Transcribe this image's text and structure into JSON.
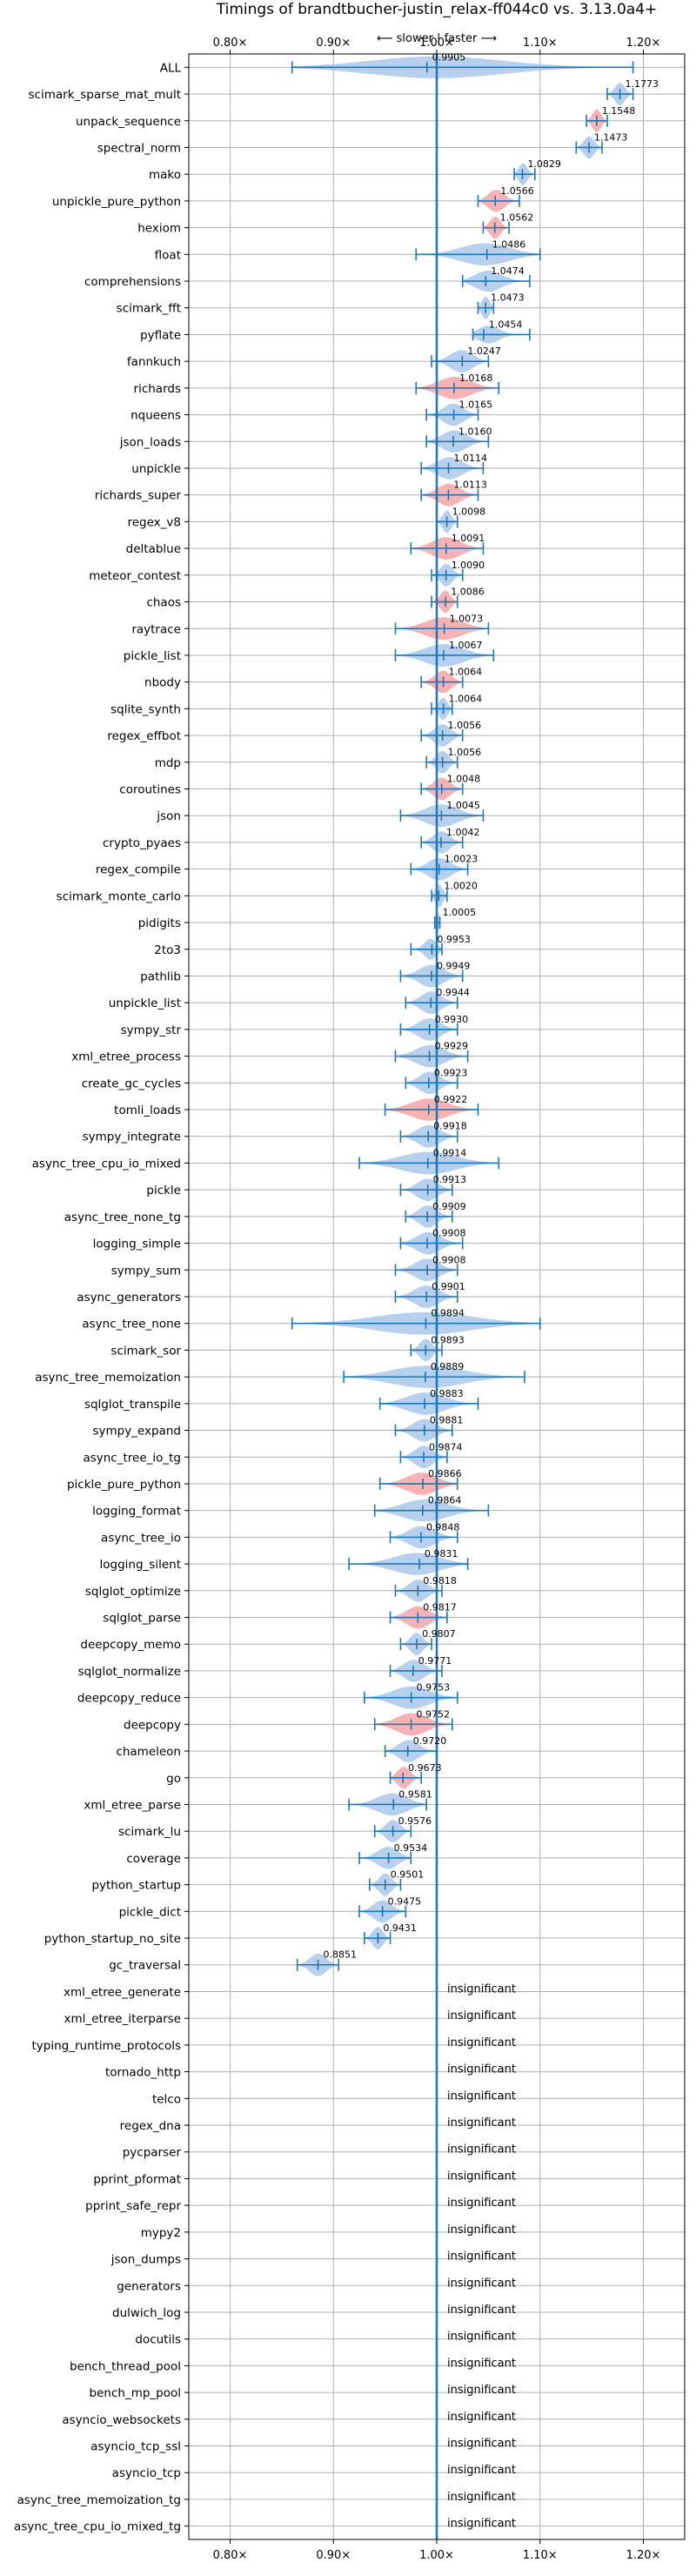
{
  "chart_data": {
    "type": "violin",
    "title": "Timings of brandtbucher-justin_relax-ff044c0 vs. 3.13.0a4+",
    "direction_label": "⟵ slower | faster ⟶",
    "xlabel": "",
    "ylabel": "",
    "xlim": [
      0.76,
      1.24
    ],
    "x_ticks": [
      0.8,
      0.9,
      1.0,
      1.1,
      1.2
    ],
    "x_tick_labels": [
      "0.80×",
      "0.90×",
      "1.00×",
      "1.10×",
      "1.20×"
    ],
    "reference_line": 1.0,
    "grid": true,
    "colors": {
      "faster": "#a9c8ea",
      "slower": "#f4a5a8",
      "errorbar": "#1f77b4",
      "reference": "#1f77b4",
      "grid": "#b0b0b0"
    },
    "insignificant_label": "insignificant",
    "benchmarks": [
      {
        "name": "ALL",
        "value": 0.9905,
        "low": 0.86,
        "high": 1.19,
        "significant": true,
        "color": "faster"
      },
      {
        "name": "scimark_sparse_mat_mult",
        "value": 1.1773,
        "low": 1.165,
        "high": 1.19,
        "significant": true,
        "color": "faster"
      },
      {
        "name": "unpack_sequence",
        "value": 1.1548,
        "low": 1.145,
        "high": 1.165,
        "significant": true,
        "color": "slower"
      },
      {
        "name": "spectral_norm",
        "value": 1.1473,
        "low": 1.135,
        "high": 1.16,
        "significant": true,
        "color": "faster"
      },
      {
        "name": "mako",
        "value": 1.0829,
        "low": 1.075,
        "high": 1.095,
        "significant": true,
        "color": "faster"
      },
      {
        "name": "unpickle_pure_python",
        "value": 1.0566,
        "low": 1.04,
        "high": 1.08,
        "significant": true,
        "color": "slower"
      },
      {
        "name": "hexiom",
        "value": 1.0562,
        "low": 1.045,
        "high": 1.07,
        "significant": true,
        "color": "slower"
      },
      {
        "name": "float",
        "value": 1.0486,
        "low": 0.98,
        "high": 1.1,
        "significant": true,
        "color": "faster"
      },
      {
        "name": "comprehensions",
        "value": 1.0474,
        "low": 1.025,
        "high": 1.09,
        "significant": true,
        "color": "faster"
      },
      {
        "name": "scimark_fft",
        "value": 1.0473,
        "low": 1.04,
        "high": 1.055,
        "significant": true,
        "color": "faster"
      },
      {
        "name": "pyflate",
        "value": 1.0454,
        "low": 1.035,
        "high": 1.09,
        "significant": true,
        "color": "faster"
      },
      {
        "name": "fannkuch",
        "value": 1.0247,
        "low": 0.995,
        "high": 1.05,
        "significant": true,
        "color": "faster"
      },
      {
        "name": "richards",
        "value": 1.0168,
        "low": 0.98,
        "high": 1.06,
        "significant": true,
        "color": "slower"
      },
      {
        "name": "nqueens",
        "value": 1.0165,
        "low": 0.99,
        "high": 1.04,
        "significant": true,
        "color": "faster"
      },
      {
        "name": "json_loads",
        "value": 1.016,
        "low": 0.99,
        "high": 1.05,
        "significant": true,
        "color": "faster"
      },
      {
        "name": "unpickle",
        "value": 1.0114,
        "low": 0.985,
        "high": 1.045,
        "significant": true,
        "color": "faster"
      },
      {
        "name": "richards_super",
        "value": 1.0113,
        "low": 0.985,
        "high": 1.04,
        "significant": true,
        "color": "slower"
      },
      {
        "name": "regex_v8",
        "value": 1.0098,
        "low": 1.0,
        "high": 1.02,
        "significant": true,
        "color": "faster"
      },
      {
        "name": "deltablue",
        "value": 1.0091,
        "low": 0.975,
        "high": 1.045,
        "significant": true,
        "color": "slower"
      },
      {
        "name": "meteor_contest",
        "value": 1.009,
        "low": 0.995,
        "high": 1.025,
        "significant": true,
        "color": "faster"
      },
      {
        "name": "chaos",
        "value": 1.0086,
        "low": 0.995,
        "high": 1.02,
        "significant": true,
        "color": "slower"
      },
      {
        "name": "raytrace",
        "value": 1.0073,
        "low": 0.96,
        "high": 1.05,
        "significant": true,
        "color": "slower"
      },
      {
        "name": "pickle_list",
        "value": 1.0067,
        "low": 0.96,
        "high": 1.055,
        "significant": true,
        "color": "faster"
      },
      {
        "name": "nbody",
        "value": 1.0064,
        "low": 0.985,
        "high": 1.025,
        "significant": true,
        "color": "slower"
      },
      {
        "name": "sqlite_synth",
        "value": 1.0064,
        "low": 0.995,
        "high": 1.015,
        "significant": true,
        "color": "faster"
      },
      {
        "name": "regex_effbot",
        "value": 1.0056,
        "low": 0.985,
        "high": 1.025,
        "significant": true,
        "color": "faster"
      },
      {
        "name": "mdp",
        "value": 1.0056,
        "low": 0.99,
        "high": 1.02,
        "significant": true,
        "color": "faster"
      },
      {
        "name": "coroutines",
        "value": 1.0048,
        "low": 0.985,
        "high": 1.025,
        "significant": true,
        "color": "slower"
      },
      {
        "name": "json",
        "value": 1.0045,
        "low": 0.965,
        "high": 1.045,
        "significant": true,
        "color": "faster"
      },
      {
        "name": "crypto_pyaes",
        "value": 1.0042,
        "low": 0.985,
        "high": 1.025,
        "significant": true,
        "color": "faster"
      },
      {
        "name": "regex_compile",
        "value": 1.0023,
        "low": 0.975,
        "high": 1.03,
        "significant": true,
        "color": "faster"
      },
      {
        "name": "scimark_monte_carlo",
        "value": 1.002,
        "low": 0.995,
        "high": 1.01,
        "significant": true,
        "color": "faster"
      },
      {
        "name": "pidigits",
        "value": 1.0005,
        "low": 0.998,
        "high": 1.003,
        "significant": true,
        "color": "faster"
      },
      {
        "name": "2to3",
        "value": 0.9953,
        "low": 0.975,
        "high": 1.005,
        "significant": true,
        "color": "faster"
      },
      {
        "name": "pathlib",
        "value": 0.9949,
        "low": 0.965,
        "high": 1.025,
        "significant": true,
        "color": "faster"
      },
      {
        "name": "unpickle_list",
        "value": 0.9944,
        "low": 0.97,
        "high": 1.02,
        "significant": true,
        "color": "faster"
      },
      {
        "name": "sympy_str",
        "value": 0.993,
        "low": 0.965,
        "high": 1.02,
        "significant": true,
        "color": "faster"
      },
      {
        "name": "xml_etree_process",
        "value": 0.9929,
        "low": 0.96,
        "high": 1.03,
        "significant": true,
        "color": "faster"
      },
      {
        "name": "create_gc_cycles",
        "value": 0.9923,
        "low": 0.97,
        "high": 1.02,
        "significant": true,
        "color": "faster"
      },
      {
        "name": "tomli_loads",
        "value": 0.9922,
        "low": 0.95,
        "high": 1.04,
        "significant": true,
        "color": "slower"
      },
      {
        "name": "sympy_integrate",
        "value": 0.9918,
        "low": 0.965,
        "high": 1.02,
        "significant": true,
        "color": "faster"
      },
      {
        "name": "async_tree_cpu_io_mixed",
        "value": 0.9914,
        "low": 0.925,
        "high": 1.06,
        "significant": true,
        "color": "faster"
      },
      {
        "name": "pickle",
        "value": 0.9913,
        "low": 0.965,
        "high": 1.015,
        "significant": true,
        "color": "faster"
      },
      {
        "name": "async_tree_none_tg",
        "value": 0.9909,
        "low": 0.97,
        "high": 1.015,
        "significant": true,
        "color": "faster"
      },
      {
        "name": "logging_simple",
        "value": 0.9908,
        "low": 0.965,
        "high": 1.025,
        "significant": true,
        "color": "faster"
      },
      {
        "name": "sympy_sum",
        "value": 0.9908,
        "low": 0.96,
        "high": 1.02,
        "significant": true,
        "color": "faster"
      },
      {
        "name": "async_generators",
        "value": 0.9901,
        "low": 0.96,
        "high": 1.02,
        "significant": true,
        "color": "faster"
      },
      {
        "name": "async_tree_none",
        "value": 0.9894,
        "low": 0.86,
        "high": 1.1,
        "significant": true,
        "color": "faster"
      },
      {
        "name": "scimark_sor",
        "value": 0.9893,
        "low": 0.975,
        "high": 1.005,
        "significant": true,
        "color": "faster"
      },
      {
        "name": "async_tree_memoization",
        "value": 0.9889,
        "low": 0.91,
        "high": 1.085,
        "significant": true,
        "color": "faster"
      },
      {
        "name": "sqlglot_transpile",
        "value": 0.9883,
        "low": 0.945,
        "high": 1.04,
        "significant": true,
        "color": "faster"
      },
      {
        "name": "sympy_expand",
        "value": 0.9881,
        "low": 0.96,
        "high": 1.015,
        "significant": true,
        "color": "faster"
      },
      {
        "name": "async_tree_io_tg",
        "value": 0.9874,
        "low": 0.965,
        "high": 1.01,
        "significant": true,
        "color": "faster"
      },
      {
        "name": "pickle_pure_python",
        "value": 0.9866,
        "low": 0.945,
        "high": 1.02,
        "significant": true,
        "color": "slower"
      },
      {
        "name": "logging_format",
        "value": 0.9864,
        "low": 0.94,
        "high": 1.05,
        "significant": true,
        "color": "faster"
      },
      {
        "name": "async_tree_io",
        "value": 0.9848,
        "low": 0.955,
        "high": 1.02,
        "significant": true,
        "color": "faster"
      },
      {
        "name": "logging_silent",
        "value": 0.9831,
        "low": 0.915,
        "high": 1.03,
        "significant": true,
        "color": "faster"
      },
      {
        "name": "sqlglot_optimize",
        "value": 0.9818,
        "low": 0.96,
        "high": 1.005,
        "significant": true,
        "color": "faster"
      },
      {
        "name": "sqlglot_parse",
        "value": 0.9817,
        "low": 0.955,
        "high": 1.01,
        "significant": true,
        "color": "slower"
      },
      {
        "name": "deepcopy_memo",
        "value": 0.9807,
        "low": 0.965,
        "high": 0.995,
        "significant": true,
        "color": "faster"
      },
      {
        "name": "sqlglot_normalize",
        "value": 0.9771,
        "low": 0.955,
        "high": 1.005,
        "significant": true,
        "color": "faster"
      },
      {
        "name": "deepcopy_reduce",
        "value": 0.9753,
        "low": 0.93,
        "high": 1.02,
        "significant": true,
        "color": "faster"
      },
      {
        "name": "deepcopy",
        "value": 0.9752,
        "low": 0.94,
        "high": 1.015,
        "significant": true,
        "color": "slower"
      },
      {
        "name": "chameleon",
        "value": 0.972,
        "low": 0.95,
        "high": 1.0,
        "significant": true,
        "color": "faster"
      },
      {
        "name": "go",
        "value": 0.9673,
        "low": 0.955,
        "high": 0.985,
        "significant": true,
        "color": "slower"
      },
      {
        "name": "xml_etree_parse",
        "value": 0.9581,
        "low": 0.915,
        "high": 0.99,
        "significant": true,
        "color": "faster"
      },
      {
        "name": "scimark_lu",
        "value": 0.9576,
        "low": 0.94,
        "high": 0.975,
        "significant": true,
        "color": "faster"
      },
      {
        "name": "coverage",
        "value": 0.9534,
        "low": 0.925,
        "high": 0.975,
        "significant": true,
        "color": "faster"
      },
      {
        "name": "python_startup",
        "value": 0.9501,
        "low": 0.935,
        "high": 0.965,
        "significant": true,
        "color": "faster"
      },
      {
        "name": "pickle_dict",
        "value": 0.9475,
        "low": 0.925,
        "high": 0.97,
        "significant": true,
        "color": "faster"
      },
      {
        "name": "python_startup_no_site",
        "value": 0.9431,
        "low": 0.93,
        "high": 0.955,
        "significant": true,
        "color": "faster"
      },
      {
        "name": "gc_traversal",
        "value": 0.8851,
        "low": 0.865,
        "high": 0.905,
        "significant": true,
        "color": "faster"
      },
      {
        "name": "xml_etree_generate",
        "significant": false
      },
      {
        "name": "xml_etree_iterparse",
        "significant": false
      },
      {
        "name": "typing_runtime_protocols",
        "significant": false
      },
      {
        "name": "tornado_http",
        "significant": false
      },
      {
        "name": "telco",
        "significant": false
      },
      {
        "name": "regex_dna",
        "significant": false
      },
      {
        "name": "pycparser",
        "significant": false
      },
      {
        "name": "pprint_pformat",
        "significant": false
      },
      {
        "name": "pprint_safe_repr",
        "significant": false
      },
      {
        "name": "mypy2",
        "significant": false
      },
      {
        "name": "json_dumps",
        "significant": false
      },
      {
        "name": "generators",
        "significant": false
      },
      {
        "name": "dulwich_log",
        "significant": false
      },
      {
        "name": "docutils",
        "significant": false
      },
      {
        "name": "bench_thread_pool",
        "significant": false
      },
      {
        "name": "bench_mp_pool",
        "significant": false
      },
      {
        "name": "asyncio_websockets",
        "significant": false
      },
      {
        "name": "asyncio_tcp_ssl",
        "significant": false
      },
      {
        "name": "asyncio_tcp",
        "significant": false
      },
      {
        "name": "async_tree_memoization_tg",
        "significant": false
      },
      {
        "name": "async_tree_cpu_io_mixed_tg",
        "significant": false
      }
    ]
  }
}
